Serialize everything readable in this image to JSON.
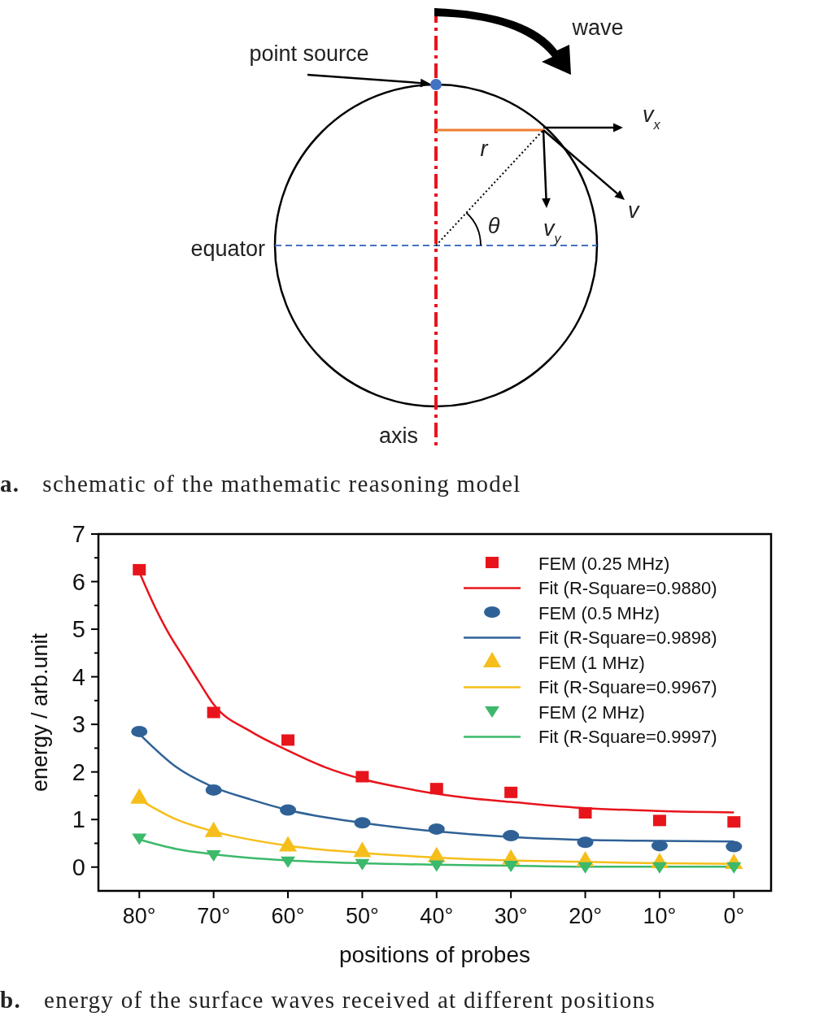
{
  "chart_data": [
    {
      "type": "other",
      "title": "a. schematic of the mathematic reasoning model",
      "annotations": [
        "point source",
        "wave",
        "v$_{x}$",
        "r",
        "θ",
        "v$_{y}$",
        "v",
        "equator",
        "axis"
      ]
    },
    {
      "type": "scatter",
      "title": "b. energy of the surface waves received at different positions",
      "xlabel": "positions of probes",
      "ylabel": "energy / arb.unit",
      "x": [
        80,
        70,
        60,
        50,
        40,
        30,
        20,
        10,
        0
      ],
      "xlim": [
        85.5,
        -5
      ],
      "xticks": [
        {
          "value": 80,
          "label": "80°"
        },
        {
          "value": 70,
          "label": "70°"
        },
        {
          "value": 60,
          "label": "60°"
        },
        {
          "value": 50,
          "label": "50°"
        },
        {
          "value": 40,
          "label": "40°"
        },
        {
          "value": 30,
          "label": "30°"
        },
        {
          "value": 20,
          "label": "20°"
        },
        {
          "value": 10,
          "label": "10°"
        },
        {
          "value": 0,
          "label": "0°"
        }
      ],
      "ylim": [
        -0.5,
        7
      ],
      "yticks": [
        0,
        {
          "value": 0.5,
          "label": null
        },
        1,
        {
          "value": 1.5,
          "label": null
        },
        2,
        {
          "value": 2.5,
          "label": null
        },
        3,
        {
          "value": 3.5,
          "label": null
        },
        4,
        {
          "value": 4.5,
          "label": null
        },
        5,
        {
          "value": 5.5,
          "label": null
        },
        6,
        {
          "value": 6.5,
          "label": null
        },
        7
      ],
      "grid": false,
      "legend": "top right",
      "series": [
        {
          "name": "FEM (0.25 MHz)",
          "type": "scatter",
          "marker": "square",
          "color": "#e8141c",
          "values": [
            6.25,
            3.25,
            2.67,
            1.9,
            1.65,
            1.57,
            1.14,
            0.98,
            0.95
          ]
        },
        {
          "name": "Fit (R-Square=0.9880)",
          "type": "line",
          "color": "#e8141c",
          "x": [
            80,
            78,
            76,
            74,
            72,
            70,
            65,
            60,
            55,
            50,
            45,
            40,
            35,
            30,
            20,
            10,
            0
          ],
          "values": [
            6.2,
            5.5,
            4.9,
            4.4,
            3.9,
            3.42,
            2.85,
            2.45,
            2.1,
            1.85,
            1.68,
            1.54,
            1.44,
            1.37,
            1.24,
            1.18,
            1.15
          ]
        },
        {
          "name": "FEM (0.5 MHz)",
          "type": "scatter",
          "marker": "circle",
          "color": "#2f6196",
          "values": [
            2.85,
            1.62,
            1.2,
            0.93,
            0.8,
            0.66,
            0.52,
            0.45,
            0.43
          ]
        },
        {
          "name": "Fit (R-Square=0.9898)",
          "type": "line",
          "color": "#2f6196",
          "x": [
            80,
            75,
            70,
            65,
            60,
            50,
            40,
            30,
            20,
            10,
            0
          ],
          "values": [
            2.8,
            2.1,
            1.68,
            1.42,
            1.2,
            0.93,
            0.75,
            0.63,
            0.57,
            0.55,
            0.54
          ]
        },
        {
          "name": "FEM (1 MHz)",
          "type": "scatter",
          "marker": "triangle",
          "color": "#f6be1a",
          "values": [
            1.45,
            0.75,
            0.45,
            0.33,
            0.22,
            0.17,
            0.13,
            0.1,
            0.08
          ]
        },
        {
          "name": "Fit (R-Square=0.9967)",
          "type": "line",
          "color": "#f6be1a",
          "x": [
            80,
            75,
            70,
            60,
            50,
            40,
            30,
            20,
            10,
            0
          ],
          "values": [
            1.42,
            1.0,
            0.75,
            0.45,
            0.3,
            0.2,
            0.14,
            0.11,
            0.08,
            0.07
          ]
        },
        {
          "name": "FEM (2 MHz)",
          "type": "scatter",
          "marker": "triangle-down",
          "color": "#3cb96b",
          "values": [
            0.6,
            0.25,
            0.12,
            0.07,
            0.04,
            0.03,
            0.0,
            0.0,
            0.0
          ]
        },
        {
          "name": "Fit (R-Square=0.9997)",
          "type": "line",
          "color": "#3cb96b",
          "x": [
            80,
            75,
            70,
            60,
            50,
            40,
            30,
            20,
            10,
            0
          ],
          "values": [
            0.58,
            0.38,
            0.27,
            0.14,
            0.08,
            0.05,
            0.03,
            0.01,
            0.01,
            0.01
          ]
        }
      ]
    }
  ]
}
